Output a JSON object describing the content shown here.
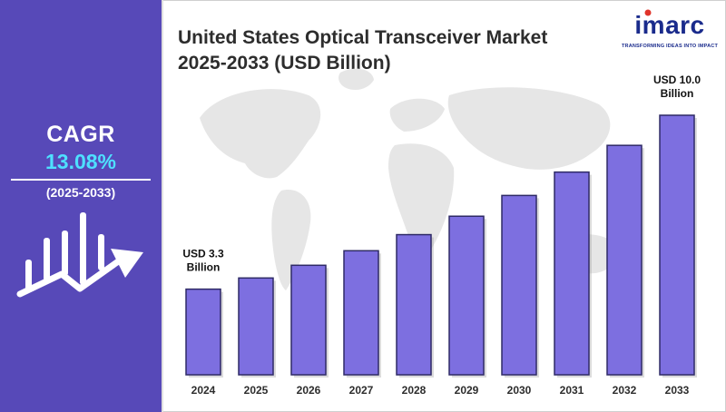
{
  "title_line1": "United States Optical Transceiver Market",
  "title_line2": "2025-2033 (USD Billion)",
  "brand": {
    "name": "imarc",
    "tagline": "TRANSFORMING IDEAS INTO IMPACT",
    "color": "#1a2b8c",
    "dot_color": "#e0342a"
  },
  "cagr": {
    "label": "CAGR",
    "value": "13.08%",
    "period": "(2025-2033)",
    "panel_color": "#5749b8",
    "value_color": "#4ee0ff",
    "icon": "growth-bars-arrow-icon"
  },
  "chart_data": {
    "type": "bar",
    "categories": [
      "2024",
      "2025",
      "2026",
      "2027",
      "2028",
      "2029",
      "2030",
      "2031",
      "2032",
      "2033"
    ],
    "values": [
      3.3,
      3.73,
      4.22,
      4.78,
      5.4,
      6.11,
      6.91,
      7.81,
      8.84,
      10.0
    ],
    "annotations": [
      {
        "category": "2024",
        "line1": "USD  3.3",
        "line2": "Billion"
      },
      {
        "category": "2033",
        "line1": "USD 10.0",
        "line2": "Billion"
      }
    ],
    "ylim": [
      0,
      10.0
    ],
    "bar_color": "#7d6fe0",
    "grid": false,
    "legend": "none",
    "background": "world-map"
  }
}
